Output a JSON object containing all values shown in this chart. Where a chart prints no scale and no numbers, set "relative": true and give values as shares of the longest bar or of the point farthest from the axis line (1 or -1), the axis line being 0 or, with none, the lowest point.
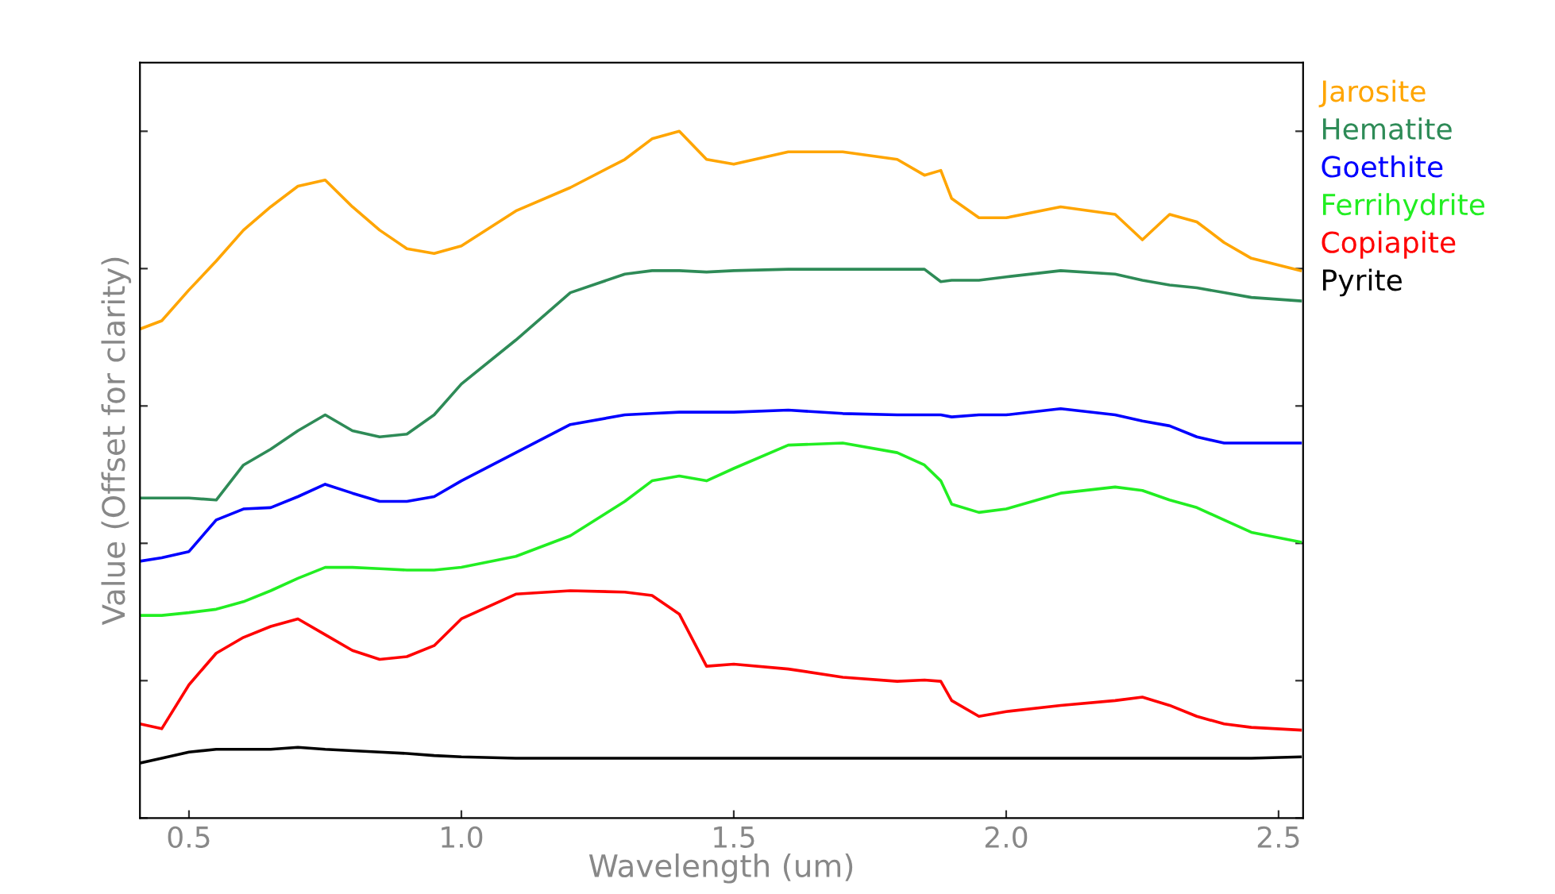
{
  "chart_data": {
    "type": "line",
    "relative": true,
    "xlabel": "Wavelength (um)",
    "ylabel": "Value (Offset for clarity)",
    "x": [
      0.41,
      0.45,
      0.5,
      0.55,
      0.6,
      0.65,
      0.7,
      0.75,
      0.8,
      0.85,
      0.9,
      0.95,
      1.0,
      1.1,
      1.2,
      1.3,
      1.35,
      1.4,
      1.45,
      1.5,
      1.6,
      1.7,
      1.8,
      1.85,
      1.88,
      1.9,
      1.95,
      2.0,
      2.1,
      2.2,
      2.25,
      2.3,
      2.35,
      2.4,
      2.45,
      2.54
    ],
    "xlim": [
      0.41,
      2.545
    ],
    "xticks": [
      {
        "value": 0.5,
        "label": "0.5"
      },
      {
        "value": 1.0,
        "label": "1.0"
      },
      {
        "value": 1.5,
        "label": "1.5"
      },
      {
        "value": 2.0,
        "label": "2.0"
      },
      {
        "value": 2.5,
        "label": "2.5"
      }
    ],
    "legend": "right",
    "grid": false,
    "marker": "none",
    "line_style": "solid",
    "series": [
      {
        "name": "Jarosite",
        "color": "#ffa500",
        "values": [
          0.712,
          0.724,
          0.769,
          0.811,
          0.856,
          0.89,
          0.92,
          0.929,
          0.89,
          0.856,
          0.829,
          0.822,
          0.833,
          0.884,
          0.918,
          0.959,
          0.989,
          1.0,
          0.959,
          0.952,
          0.97,
          0.97,
          0.959,
          0.936,
          0.943,
          0.902,
          0.874,
          0.874,
          0.89,
          0.879,
          0.842,
          0.879,
          0.868,
          0.838,
          0.815,
          0.797
        ]
      },
      {
        "name": "Hematite",
        "color": "#2e8b57",
        "values": [
          0.466,
          0.466,
          0.466,
          0.463,
          0.514,
          0.537,
          0.564,
          0.587,
          0.564,
          0.555,
          0.559,
          0.587,
          0.632,
          0.696,
          0.765,
          0.792,
          0.797,
          0.797,
          0.795,
          0.797,
          0.799,
          0.799,
          0.799,
          0.799,
          0.781,
          0.783,
          0.783,
          0.788,
          0.797,
          0.792,
          0.783,
          0.776,
          0.772,
          0.765,
          0.758,
          0.753
        ]
      },
      {
        "name": "Goethite",
        "color": "#0000ff",
        "values": [
          0.374,
          0.379,
          0.388,
          0.434,
          0.45,
          0.452,
          0.468,
          0.486,
          0.473,
          0.461,
          0.461,
          0.468,
          0.491,
          0.532,
          0.573,
          0.587,
          0.589,
          0.591,
          0.591,
          0.591,
          0.594,
          0.589,
          0.587,
          0.587,
          0.587,
          0.584,
          0.587,
          0.587,
          0.596,
          0.587,
          0.578,
          0.571,
          0.555,
          0.546,
          0.546,
          0.546
        ]
      },
      {
        "name": "Ferrihydrite",
        "color": "#22ee22",
        "values": [
          0.295,
          0.295,
          0.299,
          0.304,
          0.315,
          0.331,
          0.349,
          0.365,
          0.365,
          0.363,
          0.361,
          0.361,
          0.365,
          0.381,
          0.411,
          0.461,
          0.491,
          0.498,
          0.491,
          0.509,
          0.543,
          0.546,
          0.532,
          0.514,
          0.491,
          0.457,
          0.445,
          0.45,
          0.473,
          0.482,
          0.477,
          0.463,
          0.452,
          0.434,
          0.416,
          0.402
        ]
      },
      {
        "name": "Copiapite",
        "color": "#ff0000",
        "values": [
          0.137,
          0.13,
          0.194,
          0.24,
          0.263,
          0.279,
          0.29,
          0.267,
          0.244,
          0.231,
          0.235,
          0.251,
          0.29,
          0.326,
          0.331,
          0.329,
          0.324,
          0.297,
          0.221,
          0.224,
          0.217,
          0.205,
          0.199,
          0.201,
          0.199,
          0.171,
          0.148,
          0.155,
          0.164,
          0.171,
          0.176,
          0.164,
          0.148,
          0.137,
          0.132,
          0.128
        ]
      },
      {
        "name": "Pyrite",
        "color": "#000000",
        "values": [
          0.08,
          0.087,
          0.096,
          0.1,
          0.1,
          0.1,
          0.103,
          0.1,
          0.098,
          0.096,
          0.094,
          0.091,
          0.089,
          0.087,
          0.087,
          0.087,
          0.087,
          0.087,
          0.087,
          0.087,
          0.087,
          0.087,
          0.087,
          0.087,
          0.087,
          0.087,
          0.087,
          0.087,
          0.087,
          0.087,
          0.087,
          0.087,
          0.087,
          0.087,
          0.087,
          0.089
        ]
      }
    ]
  }
}
